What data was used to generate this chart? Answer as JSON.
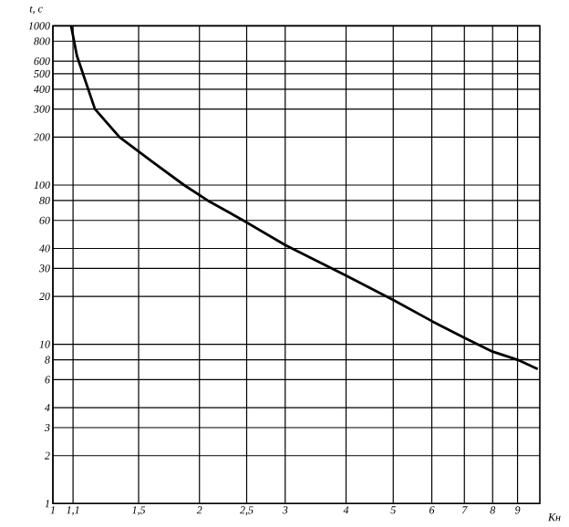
{
  "chart_data": {
    "type": "line",
    "xlabel": "Кн",
    "ylabel": "t, c",
    "log": "xy",
    "grid": true,
    "marker": "none",
    "line_style": "solid",
    "xlim": [
      1,
      10
    ],
    "ylim": [
      1,
      1000
    ],
    "xticks": [
      1,
      {
        "value": 1.1,
        "label": "1,1"
      },
      {
        "value": 1.5,
        "label": "1,5"
      },
      2,
      {
        "value": 2.5,
        "label": "2,5"
      },
      3,
      4,
      5,
      6,
      7,
      8,
      9
    ],
    "yticks": [
      1,
      2,
      3,
      4,
      6,
      8,
      10,
      20,
      30,
      40,
      60,
      80,
      100,
      200,
      300,
      400,
      500,
      600,
      800,
      1000
    ],
    "series": [
      {
        "color": "#000000",
        "x": [
          1.09,
          1.12,
          1.22,
          1.37,
          1.6,
          1.86,
          2.08,
          2.46,
          3,
          4,
          5,
          6,
          7,
          8,
          9,
          9.9
        ],
        "values": [
          1000,
          650,
          300,
          200,
          140,
          100,
          80,
          60,
          42,
          27,
          19,
          14,
          11,
          9,
          8,
          7
        ]
      }
    ]
  }
}
